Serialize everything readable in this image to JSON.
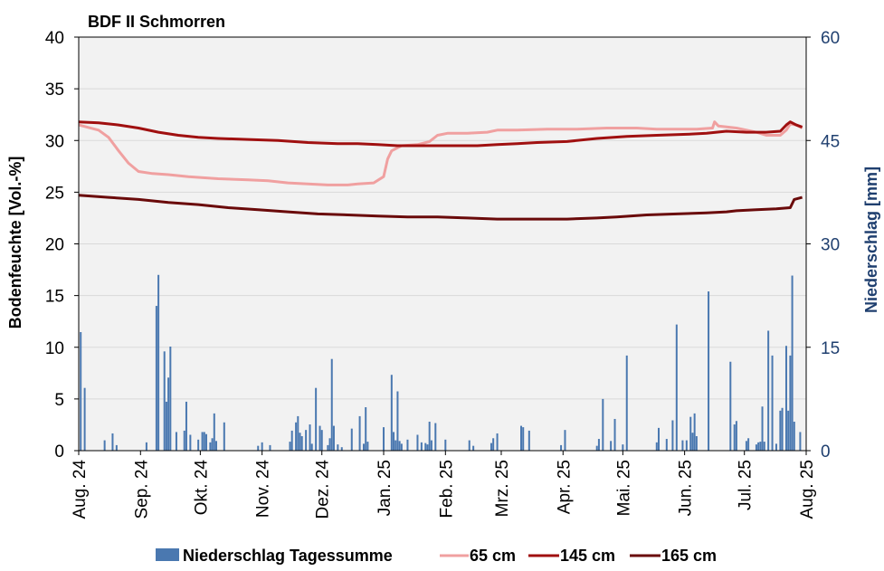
{
  "chart_data": {
    "type": "bar+line",
    "title": "BDF II Schmorren",
    "ylabel_left": "Bodenfeuchte [Vol.-%]",
    "ylabel_right": "Niederschlag [mm]",
    "ylim_left": [
      0,
      40
    ],
    "yticks_left": [
      "0",
      "5",
      "10",
      "15",
      "20",
      "25",
      "30",
      "35",
      "40"
    ],
    "ylim_right": [
      0,
      60
    ],
    "yticks_right": [
      "0",
      "15",
      "30",
      "45",
      "60"
    ],
    "x_range_days": [
      0,
      365
    ],
    "month_labels": [
      "Aug. 24",
      "Sep. 24",
      "Okt. 24",
      "Nov. 24",
      "Dez. 24",
      "Jan. 25",
      "Feb. 25",
      "Mrz. 25",
      "Apr. 25",
      "Mai. 25",
      "Jun. 25",
      "Jul. 25",
      "Aug. 25"
    ],
    "month_days": [
      0,
      31,
      61,
      92,
      122,
      153,
      184,
      212,
      243,
      273,
      304,
      334,
      365
    ],
    "grid": true,
    "legend_position": "bottom",
    "colors": {
      "bars": "#4a78b0",
      "s65": "#f0a0a0",
      "s145": "#a01010",
      "s165": "#6a0a0a",
      "plot_bg": "#f2f2f2",
      "grid": "#d9d9d9",
      "right_axis": "#1f3f6f"
    },
    "bars": {
      "name": "Niederschlag Tagessumme",
      "points": [
        [
          1,
          17.2
        ],
        [
          3,
          9.1
        ],
        [
          13,
          1.5
        ],
        [
          17,
          2.5
        ],
        [
          19,
          0.8
        ],
        [
          34,
          1.2
        ],
        [
          39,
          21
        ],
        [
          40,
          25.5
        ],
        [
          43,
          14.4
        ],
        [
          44,
          7.1
        ],
        [
          45,
          10.6
        ],
        [
          46,
          15.1
        ],
        [
          49,
          2.7
        ],
        [
          53,
          2.9
        ],
        [
          54,
          7.1
        ],
        [
          56,
          2.3
        ],
        [
          60,
          1.6
        ],
        [
          62,
          2.7
        ],
        [
          63,
          2.7
        ],
        [
          64,
          2.4
        ],
        [
          66,
          1.2
        ],
        [
          67,
          1.8
        ],
        [
          68,
          5.4
        ],
        [
          69,
          1.4
        ],
        [
          73,
          4.1
        ],
        [
          90,
          0.7
        ],
        [
          92,
          1.2
        ],
        [
          96,
          0.8
        ],
        [
          106,
          1.3
        ],
        [
          107,
          2.9
        ],
        [
          109,
          4.1
        ],
        [
          110,
          5.0
        ],
        [
          111,
          2.6
        ],
        [
          112,
          2.1
        ],
        [
          114,
          3.0
        ],
        [
          116,
          3.8
        ],
        [
          117,
          1.0
        ],
        [
          119,
          9.1
        ],
        [
          121,
          3.6
        ],
        [
          122,
          3.0
        ],
        [
          125,
          0.8
        ],
        [
          126,
          1.8
        ],
        [
          127,
          13.3
        ],
        [
          128,
          3.6
        ],
        [
          130,
          0.9
        ],
        [
          132,
          0.5
        ],
        [
          137,
          3.2
        ],
        [
          141,
          5.0
        ],
        [
          143,
          1.0
        ],
        [
          144,
          6.3
        ],
        [
          145,
          1.3
        ],
        [
          153,
          3.4
        ],
        [
          157,
          11.0
        ],
        [
          158,
          2.7
        ],
        [
          159,
          1.5
        ],
        [
          160,
          8.6
        ],
        [
          161,
          1.4
        ],
        [
          162,
          1.0
        ],
        [
          165,
          1.6
        ],
        [
          170,
          2.3
        ],
        [
          172,
          1.2
        ],
        [
          174,
          1.1
        ],
        [
          175,
          0.9
        ],
        [
          176,
          4.2
        ],
        [
          177,
          1.5
        ],
        [
          179,
          4.0
        ],
        [
          184,
          1.6
        ],
        [
          196,
          1.5
        ],
        [
          198,
          0.7
        ],
        [
          207,
          1.1
        ],
        [
          208,
          1.8
        ],
        [
          210,
          2.5
        ],
        [
          222,
          3.6
        ],
        [
          223,
          3.4
        ],
        [
          226,
          2.9
        ],
        [
          242,
          0.8
        ],
        [
          244,
          3.0
        ],
        [
          260,
          0.7
        ],
        [
          261,
          1.7
        ],
        [
          263,
          7.5
        ],
        [
          267,
          1.4
        ],
        [
          269,
          4.6
        ],
        [
          273,
          0.9
        ],
        [
          275,
          13.8
        ],
        [
          290,
          1.2
        ],
        [
          291,
          3.3
        ],
        [
          295,
          1.7
        ],
        [
          298,
          4.4
        ],
        [
          300,
          18.3
        ],
        [
          303,
          1.5
        ],
        [
          305,
          1.5
        ],
        [
          307,
          4.9
        ],
        [
          308,
          2.6
        ],
        [
          309,
          5.4
        ],
        [
          310,
          2.1
        ],
        [
          316,
          23.1
        ],
        [
          327,
          12.9
        ],
        [
          329,
          3.8
        ],
        [
          330,
          4.3
        ],
        [
          335,
          1.4
        ],
        [
          336,
          1.8
        ],
        [
          340,
          0.9
        ],
        [
          341,
          1.2
        ],
        [
          342,
          1.3
        ],
        [
          343,
          6.4
        ],
        [
          344,
          1.3
        ],
        [
          346,
          17.4
        ],
        [
          348,
          13.8
        ],
        [
          350,
          1.0
        ],
        [
          352,
          5.8
        ],
        [
          353,
          6.2
        ],
        [
          355,
          15.2
        ],
        [
          356,
          5.8
        ],
        [
          357,
          13.8
        ],
        [
          358,
          25.4
        ],
        [
          359,
          4.2
        ],
        [
          362,
          2.7
        ]
      ]
    },
    "series": [
      {
        "name": "65 cm",
        "points": [
          [
            0,
            31.5
          ],
          [
            10,
            31.0
          ],
          [
            15,
            30.3
          ],
          [
            20,
            29.0
          ],
          [
            25,
            27.8
          ],
          [
            30,
            27.0
          ],
          [
            37,
            26.8
          ],
          [
            45,
            26.7
          ],
          [
            55,
            26.5
          ],
          [
            70,
            26.3
          ],
          [
            85,
            26.2
          ],
          [
            95,
            26.1
          ],
          [
            105,
            25.9
          ],
          [
            115,
            25.8
          ],
          [
            125,
            25.7
          ],
          [
            135,
            25.7
          ],
          [
            140,
            25.8
          ],
          [
            148,
            25.9
          ],
          [
            153,
            26.5
          ],
          [
            155,
            28.2
          ],
          [
            157,
            29.0
          ],
          [
            162,
            29.5
          ],
          [
            170,
            29.6
          ],
          [
            176,
            29.9
          ],
          [
            180,
            30.5
          ],
          [
            185,
            30.7
          ],
          [
            195,
            30.7
          ],
          [
            205,
            30.8
          ],
          [
            210,
            31.0
          ],
          [
            220,
            31.0
          ],
          [
            235,
            31.1
          ],
          [
            250,
            31.1
          ],
          [
            265,
            31.2
          ],
          [
            280,
            31.2
          ],
          [
            290,
            31.1
          ],
          [
            305,
            31.1
          ],
          [
            310,
            31.1
          ],
          [
            318,
            31.2
          ],
          [
            319,
            31.8
          ],
          [
            321,
            31.4
          ],
          [
            330,
            31.2
          ],
          [
            340,
            30.8
          ],
          [
            345,
            30.5
          ],
          [
            352,
            30.5
          ],
          [
            355,
            31.0
          ],
          [
            357,
            31.6
          ],
          [
            360,
            31.5
          ],
          [
            363,
            31.2
          ]
        ]
      },
      {
        "name": "145 cm",
        "points": [
          [
            0,
            31.8
          ],
          [
            10,
            31.7
          ],
          [
            20,
            31.5
          ],
          [
            30,
            31.2
          ],
          [
            40,
            30.8
          ],
          [
            50,
            30.5
          ],
          [
            60,
            30.3
          ],
          [
            70,
            30.2
          ],
          [
            85,
            30.1
          ],
          [
            100,
            30.0
          ],
          [
            115,
            29.8
          ],
          [
            130,
            29.7
          ],
          [
            140,
            29.7
          ],
          [
            150,
            29.6
          ],
          [
            160,
            29.5
          ],
          [
            175,
            29.5
          ],
          [
            190,
            29.5
          ],
          [
            200,
            29.5
          ],
          [
            210,
            29.6
          ],
          [
            220,
            29.7
          ],
          [
            230,
            29.8
          ],
          [
            245,
            29.9
          ],
          [
            260,
            30.2
          ],
          [
            275,
            30.4
          ],
          [
            290,
            30.5
          ],
          [
            305,
            30.6
          ],
          [
            315,
            30.7
          ],
          [
            325,
            30.9
          ],
          [
            335,
            30.8
          ],
          [
            345,
            30.8
          ],
          [
            352,
            30.9
          ],
          [
            355,
            31.5
          ],
          [
            357,
            31.8
          ],
          [
            360,
            31.5
          ],
          [
            363,
            31.3
          ]
        ]
      },
      {
        "name": "165 cm",
        "points": [
          [
            0,
            24.7
          ],
          [
            15,
            24.5
          ],
          [
            30,
            24.3
          ],
          [
            45,
            24.0
          ],
          [
            60,
            23.8
          ],
          [
            75,
            23.5
          ],
          [
            90,
            23.3
          ],
          [
            105,
            23.1
          ],
          [
            120,
            22.9
          ],
          [
            135,
            22.8
          ],
          [
            150,
            22.7
          ],
          [
            165,
            22.6
          ],
          [
            180,
            22.6
          ],
          [
            195,
            22.5
          ],
          [
            210,
            22.4
          ],
          [
            230,
            22.4
          ],
          [
            245,
            22.4
          ],
          [
            260,
            22.5
          ],
          [
            270,
            22.6
          ],
          [
            285,
            22.8
          ],
          [
            300,
            22.9
          ],
          [
            315,
            23.0
          ],
          [
            325,
            23.1
          ],
          [
            330,
            23.2
          ],
          [
            340,
            23.3
          ],
          [
            350,
            23.4
          ],
          [
            357,
            23.5
          ],
          [
            359,
            24.3
          ],
          [
            363,
            24.5
          ]
        ]
      }
    ]
  }
}
